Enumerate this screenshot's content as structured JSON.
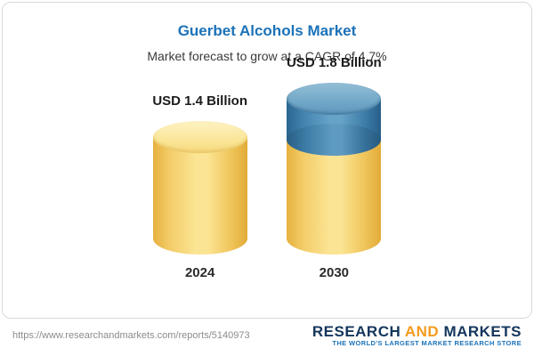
{
  "card": {
    "title": "Guerbet Alcohols Market",
    "subtitle": "Market forecast to grow at a CAGR of 4.7%"
  },
  "chart_data": {
    "type": "bar",
    "variant": "3d-cylinder",
    "categories": [
      "2024",
      "2030"
    ],
    "values": [
      1.4,
      1.8
    ],
    "unit": "USD Billion",
    "bar_labels": [
      "USD 1.4 Billion",
      "USD 1.8 Billion"
    ],
    "title": "Guerbet Alcohols Market",
    "subtitle": "Market forecast to grow at a CAGR of 4.7%",
    "cagr_percent": 4.7,
    "colors": {
      "base": "#f2cd5f",
      "growth": "#3d7fa9"
    },
    "legend_position": "none",
    "grid": false,
    "notes": "2030 cylinder shows growth segment (1.4 to 1.8) in blue on top of yellow base"
  },
  "footer": {
    "url": "https://www.researchandmarkets.com/reports/5140973",
    "logo": {
      "part1": "RESEARCH",
      "part2": "AND",
      "part3": "MARKETS",
      "tagline": "THE WORLD'S LARGEST MARKET RESEARCH STORE"
    }
  }
}
